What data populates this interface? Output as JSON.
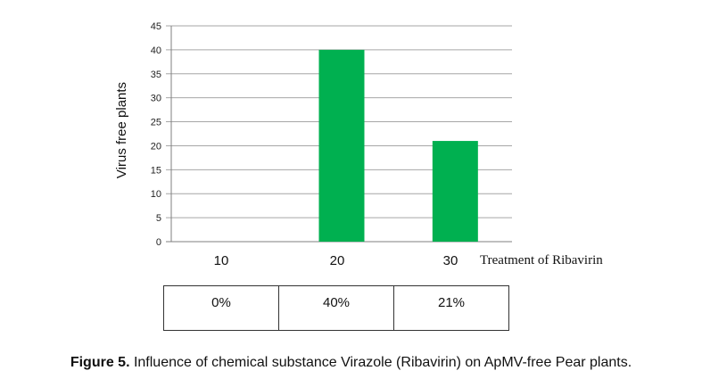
{
  "chart_data": {
    "type": "bar",
    "categories": [
      "10",
      "20",
      "30"
    ],
    "values": [
      0,
      40,
      21
    ],
    "ylabel": "Virus free plants",
    "xlabel": "Treatment of Ribavirin",
    "ylim": [
      0,
      45
    ],
    "yticks": [
      "0",
      "5",
      "10",
      "15",
      "20",
      "25",
      "30",
      "35",
      "40",
      "45"
    ],
    "grid": true,
    "bar_color": "#00b050"
  },
  "table": {
    "cells": [
      "0%",
      "40%",
      "21%"
    ]
  },
  "caption": {
    "label": "Figure 5.",
    "text": " Influence of chemical substance Virazole (Ribavirin) on ApMV-free Pear plants."
  }
}
